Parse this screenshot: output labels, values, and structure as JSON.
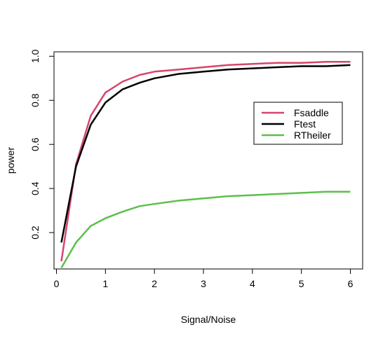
{
  "chart_data": {
    "type": "line",
    "xlabel": "Signal/Noise",
    "ylabel": "power",
    "xlim": [
      -0.05,
      6.25
    ],
    "ylim": [
      0.035,
      1.02
    ],
    "x_ticks": [
      0,
      1,
      2,
      3,
      4,
      5,
      6
    ],
    "y_ticks": [
      0.2,
      0.4,
      0.6,
      0.8,
      1.0
    ],
    "y_tick_labels": [
      "0.2",
      "0.4",
      "0.6",
      "0.8",
      "1.0"
    ],
    "grid": false,
    "legend_position": "right",
    "series": [
      {
        "name": "Fsaddle",
        "color": "#d6456b",
        "x": [
          0.1,
          0.4,
          0.7,
          1.0,
          1.35,
          1.7,
          2.0,
          2.5,
          3.0,
          3.5,
          4.0,
          4.5,
          5.0,
          5.5,
          6.0
        ],
        "y": [
          0.07,
          0.51,
          0.73,
          0.835,
          0.885,
          0.915,
          0.93,
          0.94,
          0.95,
          0.96,
          0.965,
          0.97,
          0.97,
          0.975,
          0.975
        ]
      },
      {
        "name": "Ftest",
        "color": "#000000",
        "x": [
          0.1,
          0.4,
          0.7,
          1.0,
          1.35,
          1.7,
          2.0,
          2.5,
          3.0,
          3.5,
          4.0,
          4.5,
          5.0,
          5.5,
          6.0
        ],
        "y": [
          0.155,
          0.5,
          0.69,
          0.79,
          0.85,
          0.88,
          0.9,
          0.92,
          0.93,
          0.94,
          0.945,
          0.95,
          0.955,
          0.955,
          0.96
        ]
      },
      {
        "name": "RTheiler",
        "color": "#5bc04a",
        "x": [
          0.1,
          0.4,
          0.7,
          1.0,
          1.35,
          1.7,
          2.0,
          2.5,
          3.0,
          3.5,
          4.0,
          4.5,
          5.0,
          5.5,
          6.0
        ],
        "y": [
          0.04,
          0.155,
          0.23,
          0.265,
          0.295,
          0.32,
          0.33,
          0.345,
          0.355,
          0.365,
          0.37,
          0.375,
          0.38,
          0.385,
          0.385
        ]
      }
    ]
  }
}
